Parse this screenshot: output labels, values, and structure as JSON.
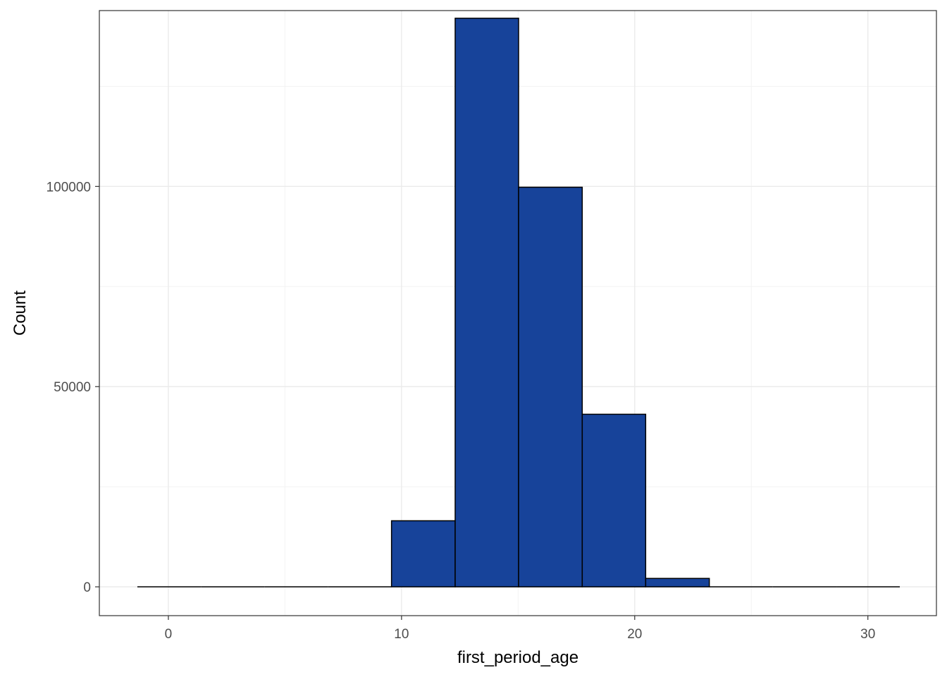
{
  "chart_data": {
    "type": "histogram",
    "title": "",
    "xlabel": "first_period_age",
    "ylabel": "Count",
    "xlim": [
      -2.96,
      32.94
    ],
    "ylim": [
      -7197,
      143917
    ],
    "x_ticks": [
      0,
      10,
      20,
      30
    ],
    "y_ticks": [
      0,
      50000,
      100000
    ],
    "x_tick_labels": [
      "0",
      "10",
      "20",
      "30"
    ],
    "y_tick_labels": [
      "0",
      "50000",
      "100000"
    ],
    "grid": true,
    "legend": "none",
    "bins": [
      {
        "x0": -1.33,
        "x1": 1.4,
        "count": 0
      },
      {
        "x0": 1.4,
        "x1": 4.12,
        "count": 0
      },
      {
        "x0": 4.12,
        "x1": 6.85,
        "count": 0
      },
      {
        "x0": 6.85,
        "x1": 9.57,
        "count": 0
      },
      {
        "x0": 9.57,
        "x1": 12.3,
        "count": 16500
      },
      {
        "x0": 12.3,
        "x1": 15.02,
        "count": 142000
      },
      {
        "x0": 15.02,
        "x1": 17.75,
        "count": 99800
      },
      {
        "x0": 17.75,
        "x1": 20.47,
        "count": 43100
      },
      {
        "x0": 20.47,
        "x1": 23.2,
        "count": 2100
      },
      {
        "x0": 23.2,
        "x1": 25.92,
        "count": 0
      },
      {
        "x0": 25.92,
        "x1": 28.65,
        "count": 0
      },
      {
        "x0": 28.65,
        "x1": 31.37,
        "count": 0
      }
    ],
    "colors": {
      "bar_fill": "#17439a",
      "bar_stroke": "#000000",
      "grid_major": "#ebebeb",
      "grid_minor": "#f3f3f3",
      "panel_border": "#333333",
      "tick_label": "#4d4d4d"
    }
  }
}
